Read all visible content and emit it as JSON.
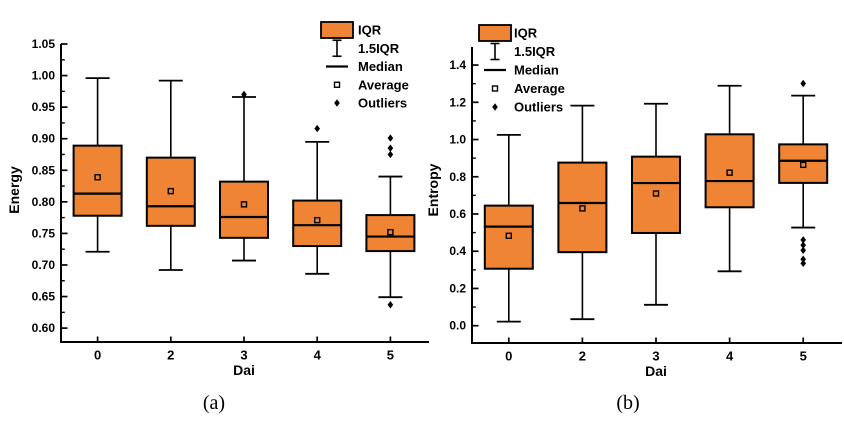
{
  "figure": {
    "background": "#ffffff",
    "box_fill": "#EE8434",
    "line_color": "#000000"
  },
  "chart_data": [
    {
      "type": "box",
      "panel_label": "(a)",
      "xlabel": "Dai",
      "ylabel": "Energy",
      "categories": [
        "0",
        "2",
        "3",
        "4",
        "5"
      ],
      "ylim": [
        0.578,
        1.05
      ],
      "yticks": [
        "1.05",
        "1.00",
        "0.95",
        "0.90",
        "0.85",
        "0.80",
        "0.75",
        "0.70",
        "0.65",
        "0.60"
      ],
      "ytick_minor_step": 0.025,
      "grid": false,
      "legend_position": "top-right",
      "legend": [
        "IQR",
        "1.5IQR",
        "Median",
        "Average",
        "Outliers"
      ],
      "boxes": [
        {
          "category": "0",
          "whisker_low": 0.721,
          "q1": 0.778,
          "median": 0.813,
          "mean": 0.839,
          "q3": 0.889,
          "whisker_high": 0.996,
          "outliers": []
        },
        {
          "category": "2",
          "whisker_low": 0.692,
          "q1": 0.762,
          "median": 0.793,
          "mean": 0.817,
          "q3": 0.87,
          "whisker_high": 0.992,
          "outliers": []
        },
        {
          "category": "3",
          "whisker_low": 0.707,
          "q1": 0.743,
          "median": 0.776,
          "mean": 0.796,
          "q3": 0.832,
          "whisker_high": 0.966,
          "outliers": [
            0.97
          ]
        },
        {
          "category": "4",
          "whisker_low": 0.686,
          "q1": 0.73,
          "median": 0.763,
          "mean": 0.771,
          "q3": 0.802,
          "whisker_high": 0.895,
          "outliers": [
            0.916
          ]
        },
        {
          "category": "5",
          "whisker_low": 0.649,
          "q1": 0.722,
          "median": 0.745,
          "mean": 0.752,
          "q3": 0.779,
          "whisker_high": 0.84,
          "outliers": [
            0.901,
            0.885,
            0.875,
            0.637
          ]
        }
      ]
    },
    {
      "type": "box",
      "panel_label": "(b)",
      "xlabel": "Dai",
      "ylabel": "Entropy",
      "categories": [
        "0",
        "2",
        "3",
        "4",
        "5"
      ],
      "ylim": [
        -0.093,
        1.497
      ],
      "yticks": [
        "1.4",
        "1.2",
        "1.0",
        "0.8",
        "0.6",
        "0.4",
        "0.2",
        "0.0"
      ],
      "ytick_minor_step": 0.1,
      "grid": false,
      "legend_position": "top-left",
      "legend": [
        "IQR",
        "1.5IQR",
        "Median",
        "Average",
        "Outliers"
      ],
      "boxes": [
        {
          "category": "0",
          "whisker_low": 0.022,
          "q1": 0.306,
          "median": 0.532,
          "mean": 0.483,
          "q3": 0.645,
          "whisker_high": 1.025,
          "outliers": []
        },
        {
          "category": "2",
          "whisker_low": 0.035,
          "q1": 0.395,
          "median": 0.659,
          "mean": 0.63,
          "q3": 0.876,
          "whisker_high": 1.182,
          "outliers": []
        },
        {
          "category": "3",
          "whisker_low": 0.112,
          "q1": 0.498,
          "median": 0.766,
          "mean": 0.71,
          "q3": 0.908,
          "whisker_high": 1.192,
          "outliers": []
        },
        {
          "category": "4",
          "whisker_low": 0.292,
          "q1": 0.636,
          "median": 0.777,
          "mean": 0.822,
          "q3": 1.028,
          "whisker_high": 1.289,
          "outliers": []
        },
        {
          "category": "5",
          "whisker_low": 0.527,
          "q1": 0.767,
          "median": 0.886,
          "mean": 0.864,
          "q3": 0.974,
          "whisker_high": 1.236,
          "outliers": [
            1.301,
            0.461,
            0.433,
            0.405,
            0.357,
            0.335
          ]
        }
      ]
    }
  ]
}
